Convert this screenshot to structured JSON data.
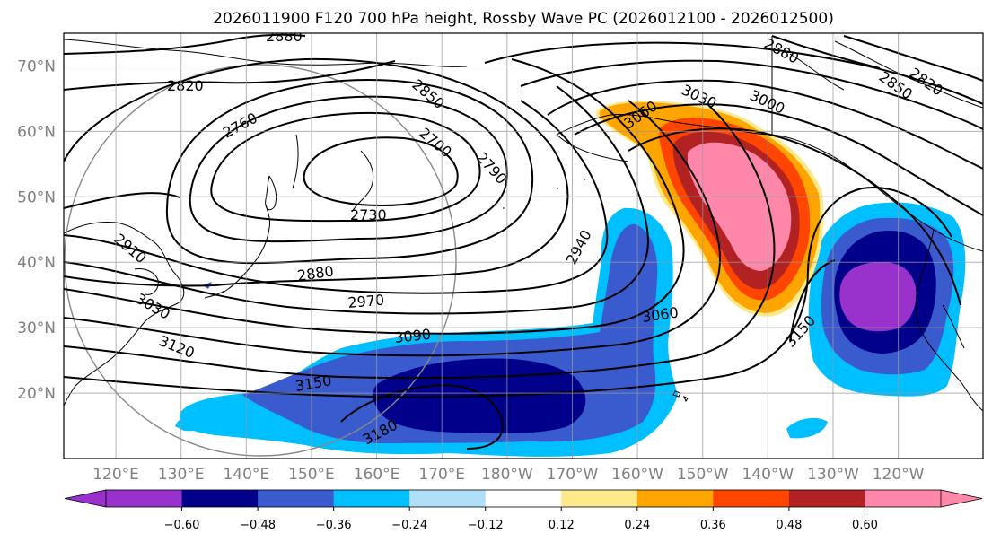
{
  "figure": {
    "title": "2026011900 F120 700 hPa height, Rossby Wave PC (2026012100 - 2026012500)"
  },
  "map": {
    "projection": "PlateCarree",
    "lon_range_deg_east": [
      112,
      253
    ],
    "lat_range_deg": [
      10,
      75
    ],
    "lat_ticks": [
      "20°N",
      "30°N",
      "40°N",
      "50°N",
      "60°N",
      "70°N"
    ],
    "lon_ticks": [
      "120°E",
      "130°E",
      "140°E",
      "150°E",
      "160°E",
      "170°E",
      "180°W",
      "170°W",
      "160°W",
      "150°W",
      "140°W",
      "130°W",
      "120°W"
    ],
    "gridlines": true,
    "height_contour_labels": [
      "2880",
      "2820",
      "2760",
      "2850",
      "2700",
      "2790",
      "2730",
      "3060",
      "3030",
      "3000",
      "2880",
      "2850",
      "2820",
      "2910",
      "2880",
      "2970",
      "3030",
      "3120",
      "3090",
      "3150",
      "3180",
      "2940",
      "3060",
      "3150"
    ],
    "shading_field": "Rossby Wave PC",
    "anomaly_regions": [
      {
        "name": "positive-anomaly-north-pacific",
        "sign": "positive",
        "center_lat": 50,
        "center_lon_deg_east": 212,
        "peak": 0.6
      },
      {
        "name": "negative-anomaly-west-coast",
        "sign": "negative",
        "center_lat": 35,
        "center_lon_deg_east": 233,
        "peak": -0.6
      },
      {
        "name": "negative-anomaly-subtropical-pacific",
        "sign": "negative",
        "center_lat": 22,
        "center_lon_deg_east": 175,
        "peak": -0.48
      }
    ]
  },
  "colorbar": {
    "boundaries": [
      -0.72,
      -0.6,
      -0.48,
      -0.36,
      -0.24,
      -0.12,
      0.12,
      0.24,
      0.36,
      0.48,
      0.6,
      0.72
    ],
    "colors": [
      "#9932cc",
      "#00008b",
      "#3a5bcd",
      "#00bfff",
      "#afe0f7",
      "#ffffff",
      "#ffe98a",
      "#ffa500",
      "#ff4500",
      "#b22222",
      "#ff88aa"
    ],
    "tick_labels": [
      "−0.60",
      "−0.48",
      "−0.36",
      "−0.24",
      "−0.12",
      "0.12",
      "0.24",
      "0.36",
      "0.48",
      "0.60"
    ],
    "extend": "both"
  }
}
